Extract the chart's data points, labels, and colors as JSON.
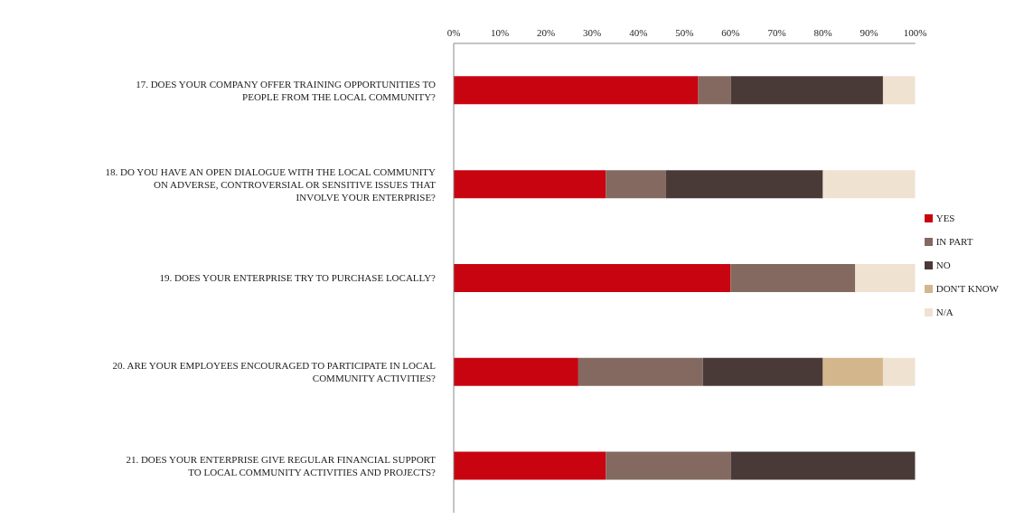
{
  "chart_data": {
    "type": "bar",
    "orientation": "horizontal",
    "stacked": true,
    "categories": [
      "17. DOES YOUR COMPANY OFFER TRAINING OPPORTUNITIES TO PEOPLE FROM THE LOCAL COMMUNITY?",
      "18. DO YOU HAVE AN OPEN DIALOGUE WITH THE LOCAL COMMUNITY ON ADVERSE, CONTROVERSIAL OR SENSITIVE ISSUES THAT INVOLVE YOUR ENTERPRISE?",
      "19. DOES YOUR ENTERPRISE TRY TO PURCHASE LOCALLY?",
      "20. ARE YOUR EMPLOYEES ENCOURAGED TO PARTICIPATE IN LOCAL COMMUNITY ACTIVITIES?",
      "21. DOES YOUR ENTERPRISE GIVE REGULAR FINANCIAL SUPPORT TO LOCAL COMMUNITY ACTIVITIES AND PROJECTS?"
    ],
    "series": [
      {
        "name": "YES",
        "color": "#c80410",
        "values": [
          53,
          33,
          60,
          27,
          33
        ]
      },
      {
        "name": "IN PART",
        "color": "#836960",
        "values": [
          7,
          13,
          27,
          27,
          27
        ]
      },
      {
        "name": "NO",
        "color": "#4a3a37",
        "values": [
          33,
          34,
          0,
          26,
          40
        ]
      },
      {
        "name": "DON'T KNOW",
        "color": "#d4b68c",
        "values": [
          0,
          0,
          0,
          13,
          0
        ]
      },
      {
        "name": "N/A",
        "color": "#efe2d0",
        "values": [
          7,
          20,
          13,
          7,
          0
        ]
      }
    ],
    "xlim": [
      0,
      100
    ],
    "xticks": [
      {
        "value": 0,
        "label": "0%"
      },
      {
        "value": 10,
        "label": "10%"
      },
      {
        "value": 20,
        "label": "20%"
      },
      {
        "value": 30,
        "label": "30%"
      },
      {
        "value": 40,
        "label": "40%"
      },
      {
        "value": 50,
        "label": "50%"
      },
      {
        "value": 60,
        "label": "60%"
      },
      {
        "value": 70,
        "label": "70%"
      },
      {
        "value": 80,
        "label": "80%"
      },
      {
        "value": 90,
        "label": "90%"
      },
      {
        "value": 100,
        "label": "100%"
      }
    ],
    "grid": false,
    "legend": "right"
  }
}
